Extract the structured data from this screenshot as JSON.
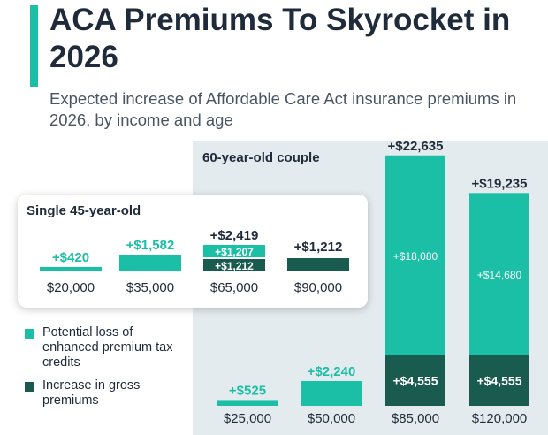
{
  "header": {
    "title": "ACA Premiums To Skyrocket in 2026",
    "subtitle": "Expected increase of Affordable Care Act insurance premiums in 2026, by income and age"
  },
  "colors": {
    "accent": "#1bbfa6",
    "tax_credits": "#1bbfa6",
    "gross_premiums": "#1a5b4f",
    "panel_bg": "#e4ebee"
  },
  "legend": {
    "tax_credits_label": "Potential loss of enhanced premium tax credits",
    "gross_premiums_label": "Increase in gross premiums"
  },
  "chart_data": [
    {
      "type": "bar",
      "stacked": true,
      "title": "Single 45-year-old",
      "categories": [
        "$20,000",
        "$35,000",
        "$65,000",
        "$90,000"
      ],
      "series": [
        {
          "name": "Increase in gross premiums",
          "values": [
            0,
            0,
            1212,
            1212
          ],
          "labels": [
            "",
            "",
            "+$1,212",
            ""
          ]
        },
        {
          "name": "Potential loss of enhanced premium tax credits",
          "values": [
            420,
            1582,
            1207,
            0
          ],
          "labels": [
            "",
            "",
            "+$1,207",
            ""
          ]
        }
      ],
      "totals": [
        "+$420",
        "+$1,582",
        "+$2,419",
        "+$1,212"
      ]
    },
    {
      "type": "bar",
      "stacked": true,
      "title": "60-year-old couple",
      "categories": [
        "$25,000",
        "$50,000",
        "$85,000",
        "$120,000"
      ],
      "series": [
        {
          "name": "Increase in gross premiums",
          "values": [
            0,
            0,
            4555,
            4555
          ],
          "labels": [
            "",
            "",
            "+$4,555",
            "+$4,555"
          ]
        },
        {
          "name": "Potential loss of enhanced premium tax credits",
          "values": [
            525,
            2240,
            18080,
            14680
          ],
          "labels": [
            "",
            "",
            "+$18,080",
            "+$14,680"
          ]
        }
      ],
      "totals": [
        "+$525",
        "+$2,240",
        "+$22,635",
        "+$19,235"
      ]
    }
  ]
}
